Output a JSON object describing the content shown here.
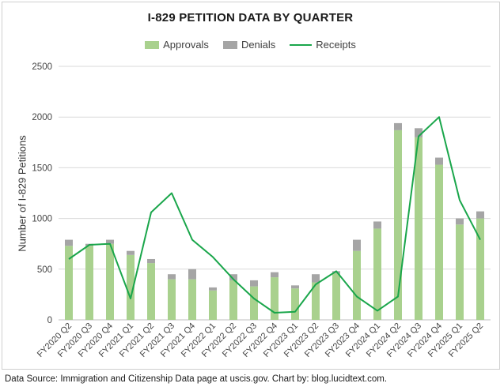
{
  "chart_data": {
    "type": "bar",
    "title": "I-829 PETITION DATA BY QUARTER",
    "ylabel": "Number of I-829 Petitions",
    "xlabel": "",
    "ylim": [
      0,
      2500
    ],
    "yticks": [
      0,
      500,
      1000,
      1500,
      2000,
      2500
    ],
    "grid": true,
    "legend_position": "top",
    "stacked": true,
    "categories": [
      "FY2020 Q2",
      "FY2020 Q3",
      "FY2020 Q4",
      "FY2021 Q1",
      "FY2021 Q2",
      "FY2021 Q3",
      "FY2021 Q4",
      "FY2022 Q1",
      "FY2022 Q2",
      "FY2022 Q3",
      "FY2022 Q4",
      "FY2023 Q1",
      "FY2023 Q2",
      "FY2023 Q3",
      "FY2023 Q4",
      "FY2024 Q1",
      "FY2024 Q2",
      "FY2024 Q3",
      "FY2024 Q4",
      "FY2025 Q1",
      "FY2025 Q2"
    ],
    "series": [
      {
        "name": "Approvals",
        "type": "bar",
        "color": "#a9d18e",
        "values": [
          730,
          730,
          750,
          640,
          560,
          400,
          400,
          290,
          390,
          330,
          420,
          310,
          370,
          460,
          680,
          900,
          1870,
          1800,
          1530,
          940,
          1000
        ]
      },
      {
        "name": "Denials",
        "type": "bar",
        "color": "#a5a5a5",
        "values": [
          60,
          20,
          40,
          40,
          40,
          50,
          100,
          30,
          60,
          60,
          50,
          30,
          80,
          20,
          110,
          70,
          70,
          90,
          70,
          60,
          70
        ]
      },
      {
        "name": "Receipts",
        "type": "line",
        "color": "#1aa64b",
        "values": [
          600,
          740,
          750,
          210,
          1060,
          1250,
          790,
          620,
          400,
          210,
          70,
          80,
          350,
          480,
          230,
          90,
          230,
          1810,
          2000,
          1180,
          790
        ]
      }
    ]
  },
  "footer": "Data Source: Immigration and Citizenship Data page at uscis.gov. Chart by: blog.lucidtext.com."
}
